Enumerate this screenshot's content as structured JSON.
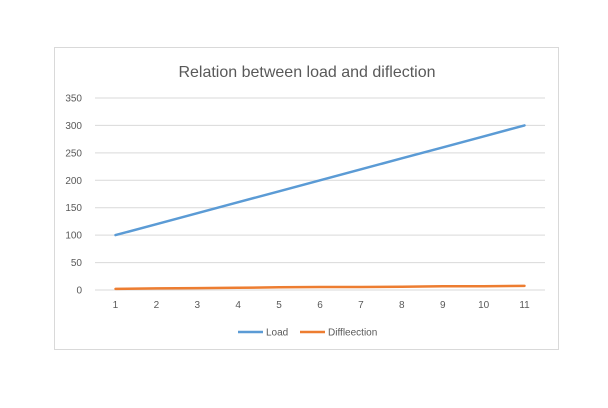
{
  "chart_data": {
    "type": "line",
    "title": "Relation between load and diflection",
    "xlabel": "",
    "ylabel": "",
    "categories": [
      "1",
      "2",
      "3",
      "4",
      "5",
      "6",
      "7",
      "8",
      "9",
      "10",
      "11"
    ],
    "ylim": [
      0,
      350
    ],
    "yticks": [
      0,
      50,
      100,
      150,
      200,
      250,
      300,
      350
    ],
    "grid": true,
    "legend": "bottom",
    "series": [
      {
        "name": "Load",
        "color": "#5b9bd5",
        "values": [
          100,
          120,
          140,
          160,
          180,
          200,
          220,
          240,
          260,
          280,
          300
        ]
      },
      {
        "name": "Diffleection",
        "color": "#ed7d31",
        "values": [
          2,
          3,
          3.5,
          4,
          5,
          5.5,
          5.5,
          6,
          7,
          7,
          7.5
        ]
      }
    ]
  }
}
